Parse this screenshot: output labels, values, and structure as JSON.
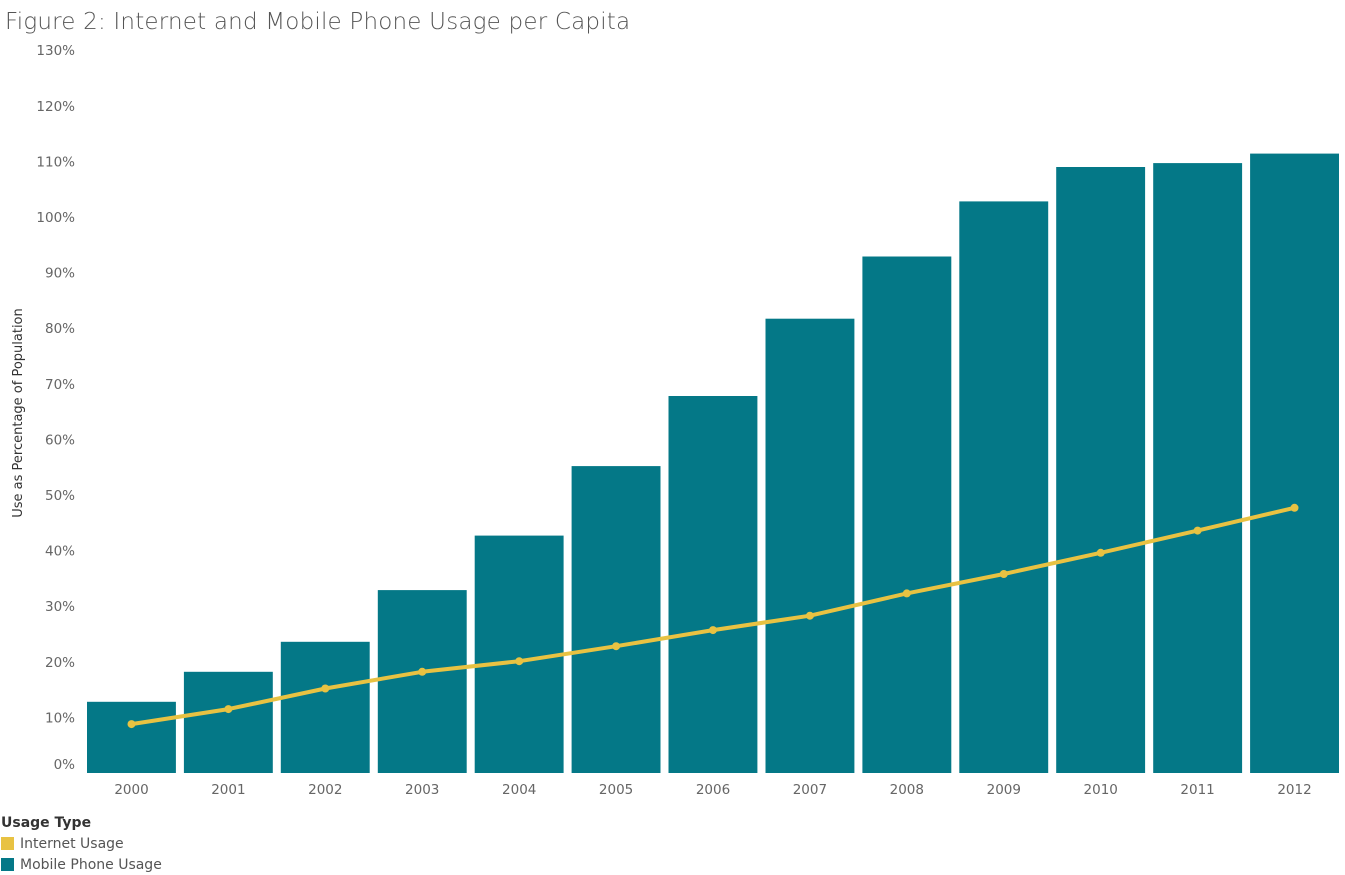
{
  "chart_data": {
    "type": "bar",
    "title": "Figure 2: Internet and Mobile Phone Usage per Capita",
    "ylabel": "Use as Percentage of Population",
    "xlabel": "",
    "categories": [
      "2000",
      "2001",
      "2002",
      "2003",
      "2004",
      "2005",
      "2006",
      "2007",
      "2008",
      "2009",
      "2010",
      "2011",
      "2012"
    ],
    "ylim": [
      0,
      130
    ],
    "yticks": [
      0,
      10,
      20,
      30,
      40,
      50,
      60,
      70,
      80,
      90,
      100,
      110,
      120,
      130
    ],
    "ytick_labels": [
      "0%",
      "10%",
      "20%",
      "30%",
      "40%",
      "50%",
      "60%",
      "70%",
      "80%",
      "90%",
      "100%",
      "110%",
      "120%",
      "130%"
    ],
    "grid": false,
    "legend_title": "Usage Type",
    "legend_position": "bottom-left",
    "series": [
      {
        "name": "Mobile Phone Usage",
        "type": "bar",
        "color": "#047887",
        "values": [
          12.8,
          18.2,
          23.6,
          32.9,
          42.7,
          55.2,
          67.8,
          81.7,
          92.9,
          102.8,
          109.0,
          109.7,
          111.4
        ]
      },
      {
        "name": "Internet Usage",
        "type": "line",
        "color": "#E8C242",
        "values": [
          8.8,
          11.5,
          15.2,
          18.2,
          20.1,
          22.8,
          25.7,
          28.3,
          32.3,
          35.8,
          39.6,
          43.6,
          47.7
        ]
      }
    ]
  }
}
